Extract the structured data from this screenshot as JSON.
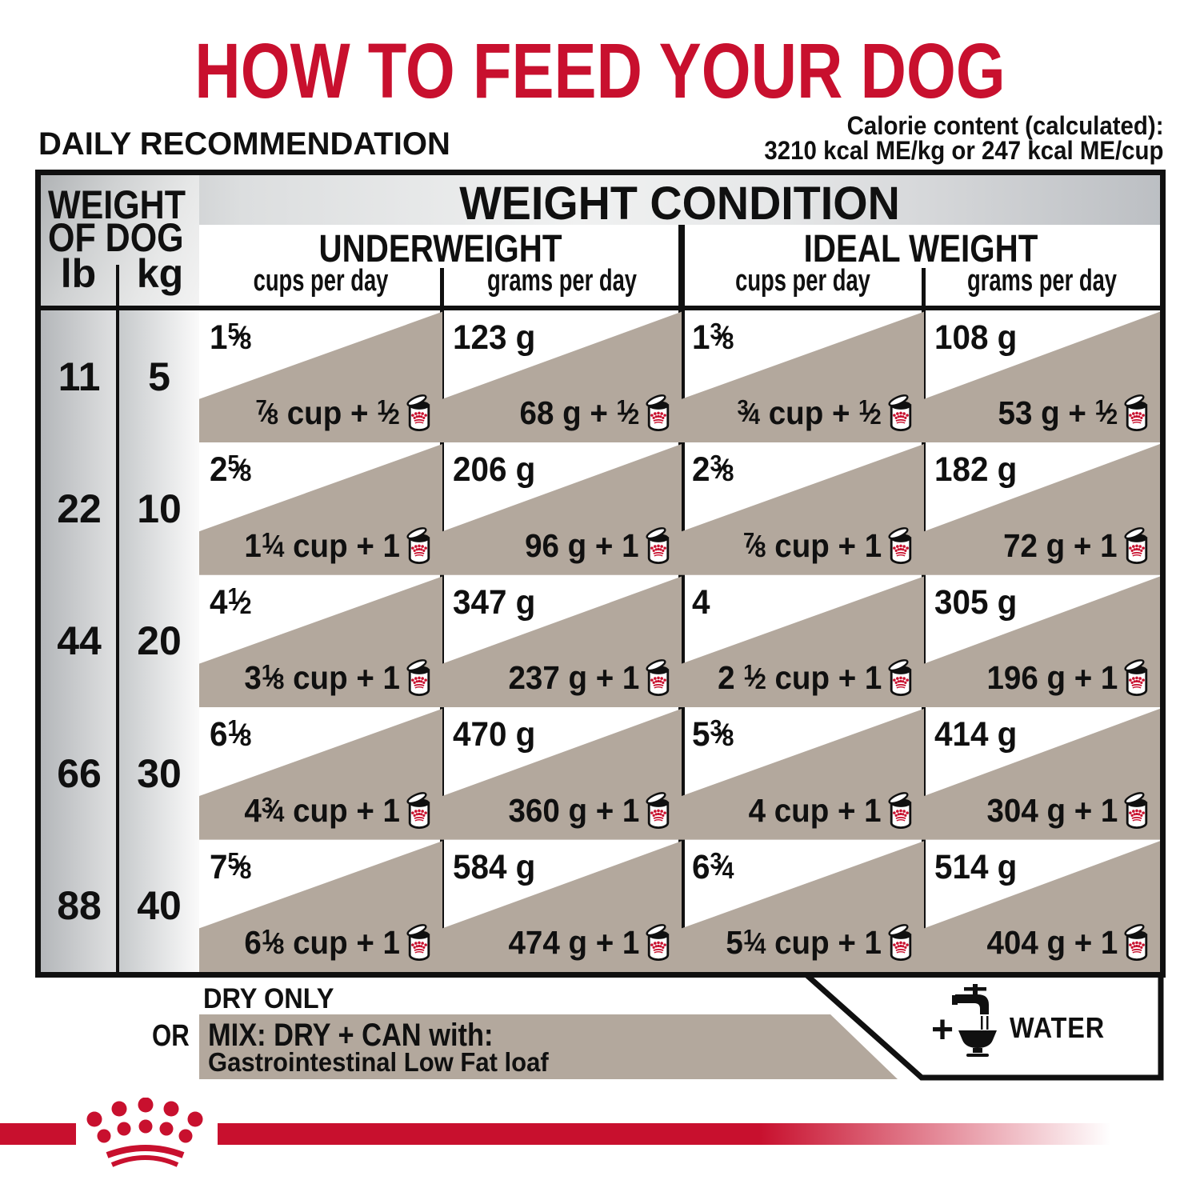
{
  "title": "HOW TO FEED YOUR DOG",
  "subtitle": "DAILY RECOMMENDATION",
  "calories": {
    "line1": "Calorie content (calculated):",
    "line2": "3210 kcal ME/kg or 247 kcal ME/cup"
  },
  "table": {
    "weight_header_line1": "WEIGHT",
    "weight_header_line2": "OF DOG",
    "unit_lb": "lb",
    "unit_kg": "kg",
    "condition_header": "WEIGHT CONDITION",
    "condition_underweight": "UNDERWEIGHT",
    "condition_ideal": "IDEAL WEIGHT",
    "col_cups": "cups per day",
    "col_grams": "grams per day",
    "rows": [
      {
        "lb": "11",
        "kg": "5",
        "cells": [
          {
            "dry": "1⅝",
            "mix": "⅞ cup + ½"
          },
          {
            "dry": "123 g",
            "mix": "68 g + ½"
          },
          {
            "dry": "1⅜",
            "mix": "¾ cup + ½"
          },
          {
            "dry": "108 g",
            "mix": "53 g + ½"
          }
        ]
      },
      {
        "lb": "22",
        "kg": "10",
        "cells": [
          {
            "dry": "2⅝",
            "mix": "1¼ cup + 1"
          },
          {
            "dry": "206 g",
            "mix": "96 g + 1"
          },
          {
            "dry": "2⅜",
            "mix": "⅞ cup + 1"
          },
          {
            "dry": "182 g",
            "mix": "72 g + 1"
          }
        ]
      },
      {
        "lb": "44",
        "kg": "20",
        "cells": [
          {
            "dry": "4½",
            "mix": "3⅛ cup + 1"
          },
          {
            "dry": "347 g",
            "mix": "237 g + 1"
          },
          {
            "dry": "4",
            "mix": "2 ½ cup + 1"
          },
          {
            "dry": "305 g",
            "mix": "196 g + 1"
          }
        ]
      },
      {
        "lb": "66",
        "kg": "30",
        "cells": [
          {
            "dry": "6⅛",
            "mix": "4¾ cup + 1"
          },
          {
            "dry": "470 g",
            "mix": "360 g + 1"
          },
          {
            "dry": "5⅜",
            "mix": "4 cup + 1"
          },
          {
            "dry": "414 g",
            "mix": "304 g + 1"
          }
        ]
      },
      {
        "lb": "88",
        "kg": "40",
        "cells": [
          {
            "dry": "7⅝",
            "mix": "6⅛ cup + 1"
          },
          {
            "dry": "584 g",
            "mix": "474 g + 1"
          },
          {
            "dry": "6¾",
            "mix": "5¼ cup + 1"
          },
          {
            "dry": "514 g",
            "mix": "404 g + 1"
          }
        ]
      }
    ]
  },
  "legend": {
    "dry_label": "DRY ONLY",
    "or_label": "OR",
    "mix_label": "MIX: DRY + CAN with:",
    "mix_sublabel": "Gastrointestinal Low Fat loaf",
    "water_plus": "+",
    "water_label": "WATER"
  },
  "colors": {
    "brand_red": "#c8102e",
    "tan_band": "#b3a89d",
    "line_black": "#101010"
  },
  "chart_data": {
    "type": "table",
    "title": "HOW TO FEED YOUR DOG — DAILY RECOMMENDATION",
    "calorie_content": "3210 kcal ME/kg or 247 kcal ME/cup",
    "columns": [
      "weight lb",
      "weight kg",
      "UNDERWEIGHT cups per day (dry only)",
      "UNDERWEIGHT cups per day (mix dry + can)",
      "UNDERWEIGHT grams per day (dry only)",
      "UNDERWEIGHT grams per day (mix dry + can)",
      "IDEAL WEIGHT cups per day (dry only)",
      "IDEAL WEIGHT cups per day (mix dry + can)",
      "IDEAL WEIGHT grams per day (dry only)",
      "IDEAL WEIGHT grams per day (mix dry + can)"
    ],
    "rows_data": [
      [
        "11",
        "5",
        "1⅝",
        "⅞ cup + ½ can",
        "123 g",
        "68 g + ½ can",
        "1⅜",
        "¾ cup + ½ can",
        "108 g",
        "53 g + ½ can"
      ],
      [
        "22",
        "10",
        "2⅝",
        "1¼ cup + 1 can",
        "206 g",
        "96 g + 1 can",
        "2⅜",
        "⅞ cup + 1 can",
        "182 g",
        "72 g + 1 can"
      ],
      [
        "44",
        "20",
        "4½",
        "3⅛ cup + 1 can",
        "347 g",
        "237 g + 1 can",
        "4",
        "2 ½ cup + 1 can",
        "305 g",
        "196 g + 1 can"
      ],
      [
        "66",
        "30",
        "6⅛",
        "4¾ cup + 1 can",
        "470 g",
        "360 g + 1 can",
        "5⅜",
        "4 cup + 1 can",
        "414 g",
        "304 g + 1 can"
      ],
      [
        "88",
        "40",
        "7⅝",
        "6⅛ cup + 1 can",
        "584 g",
        "474 g + 1 can",
        "6¾",
        "5¼ cup + 1 can",
        "514 g",
        "404 g + 1 can"
      ]
    ],
    "notes": "Mix row values are for MIX: DRY + CAN with Gastrointestinal Low Fat loaf; add water"
  }
}
